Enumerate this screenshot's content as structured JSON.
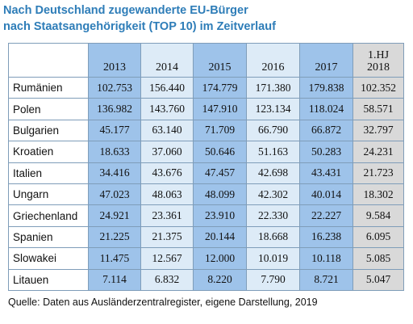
{
  "title_line1": "Nach Deutschland zugewanderte EU-Bürger",
  "title_line2": "nach Staatsangehörigkeit (TOP 10) im Zeitverlauf",
  "columns": [
    "2013",
    "2014",
    "2015",
    "2016",
    "2017",
    "1.HJ\n2018"
  ],
  "column_colors": [
    "#9ec3ea",
    "#ddebf7",
    "#9ec3ea",
    "#ddebf7",
    "#9ec3ea",
    "#d9d9d9"
  ],
  "rows": [
    {
      "country": "Rumänien",
      "values": [
        "102.753",
        "156.440",
        "174.779",
        "171.380",
        "179.838",
        "102.352"
      ]
    },
    {
      "country": "Polen",
      "values": [
        "136.982",
        "143.760",
        "147.910",
        "123.134",
        "118.024",
        "58.571"
      ]
    },
    {
      "country": "Bulgarien",
      "values": [
        "45.177",
        "63.140",
        "71.709",
        "66.790",
        "66.872",
        "32.797"
      ]
    },
    {
      "country": "Kroatien",
      "values": [
        "18.633",
        "37.060",
        "50.646",
        "51.163",
        "50.283",
        "24.231"
      ]
    },
    {
      "country": "Italien",
      "values": [
        "34.416",
        "43.676",
        "47.457",
        "42.698",
        "43.431",
        "21.723"
      ]
    },
    {
      "country": "Ungarn",
      "values": [
        "47.023",
        "48.063",
        "48.099",
        "42.302",
        "40.014",
        "18.302"
      ]
    },
    {
      "country": "Griechenland",
      "values": [
        "24.921",
        "23.361",
        "23.910",
        "22.330",
        "22.227",
        "9.584"
      ]
    },
    {
      "country": "Spanien",
      "values": [
        "21.225",
        "21.375",
        "20.144",
        "18.668",
        "16.238",
        "6.095"
      ]
    },
    {
      "country": "Slowakei",
      "values": [
        "11.475",
        "12.567",
        "12.000",
        "10.019",
        "10.118",
        "5.085"
      ]
    },
    {
      "country": "Litauen",
      "values": [
        "7.114",
        "6.832",
        "8.220",
        "7.790",
        "8.721",
        "5.047"
      ]
    }
  ],
  "source": "Quelle: Daten aus Ausländerzentralregister, eigene Darstellung, 2019"
}
